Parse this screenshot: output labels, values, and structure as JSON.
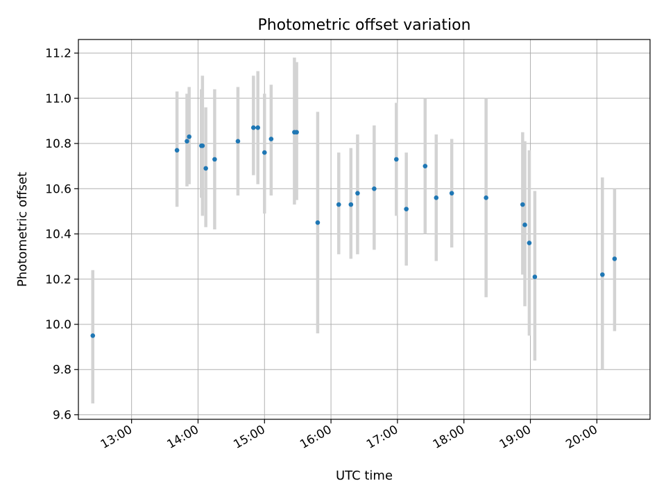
{
  "chart_data": {
    "type": "scatter",
    "title": "Photometric offset variation",
    "xlabel": "UTC time",
    "ylabel": "Photometric offset",
    "xlim": [
      "12:12",
      "20:48"
    ],
    "ylim": [
      9.58,
      11.26
    ],
    "grid": true,
    "x_ticks": [
      "13:00",
      "14:00",
      "15:00",
      "16:00",
      "17:00",
      "18:00",
      "19:00",
      "20:00"
    ],
    "y_ticks": [
      "9.6",
      "9.8",
      "10.0",
      "10.2",
      "10.4",
      "10.6",
      "10.8",
      "11.0",
      "11.2"
    ],
    "colors": {
      "point": "#1f77b4",
      "errorbar": "#d3d3d3",
      "grid": "#b0b0b0"
    },
    "series": [
      {
        "points": [
          {
            "x": "12:25",
            "y": 9.95,
            "yerr": [
              9.65,
              10.24
            ]
          },
          {
            "x": "13:41",
            "y": 10.77,
            "yerr": [
              10.52,
              11.03
            ]
          },
          {
            "x": "13:50",
            "y": 10.81,
            "yerr": [
              10.61,
              11.02
            ]
          },
          {
            "x": "13:52",
            "y": 10.83,
            "yerr": [
              10.62,
              11.05
            ]
          },
          {
            "x": "14:03",
            "y": 10.79,
            "yerr": [
              10.56,
              11.04
            ]
          },
          {
            "x": "14:04",
            "y": 10.79,
            "yerr": [
              10.48,
              11.1
            ]
          },
          {
            "x": "14:07",
            "y": 10.69,
            "yerr": [
              10.43,
              10.96
            ]
          },
          {
            "x": "14:15",
            "y": 10.73,
            "yerr": [
              10.42,
              11.04
            ]
          },
          {
            "x": "14:36",
            "y": 10.81,
            "yerr": [
              10.57,
              11.05
            ]
          },
          {
            "x": "14:50",
            "y": 10.87,
            "yerr": [
              10.66,
              11.1
            ]
          },
          {
            "x": "14:54",
            "y": 10.87,
            "yerr": [
              10.62,
              11.12
            ]
          },
          {
            "x": "15:00",
            "y": 10.76,
            "yerr": [
              10.49,
              11.02
            ]
          },
          {
            "x": "15:06",
            "y": 10.82,
            "yerr": [
              10.57,
              11.06
            ]
          },
          {
            "x": "15:27",
            "y": 10.85,
            "yerr": [
              10.53,
              11.18
            ]
          },
          {
            "x": "15:29",
            "y": 10.85,
            "yerr": [
              10.55,
              11.16
            ]
          },
          {
            "x": "15:48",
            "y": 10.45,
            "yerr": [
              9.96,
              10.94
            ]
          },
          {
            "x": "16:07",
            "y": 10.53,
            "yerr": [
              10.31,
              10.76
            ]
          },
          {
            "x": "16:18",
            "y": 10.53,
            "yerr": [
              10.29,
              10.78
            ]
          },
          {
            "x": "16:24",
            "y": 10.58,
            "yerr": [
              10.31,
              10.84
            ]
          },
          {
            "x": "16:39",
            "y": 10.6,
            "yerr": [
              10.33,
              10.88
            ]
          },
          {
            "x": "16:59",
            "y": 10.73,
            "yerr": [
              10.48,
              10.98
            ]
          },
          {
            "x": "17:08",
            "y": 10.51,
            "yerr": [
              10.26,
              10.76
            ]
          },
          {
            "x": "17:25",
            "y": 10.7,
            "yerr": [
              10.4,
              11.0
            ]
          },
          {
            "x": "17:35",
            "y": 10.56,
            "yerr": [
              10.28,
              10.84
            ]
          },
          {
            "x": "17:49",
            "y": 10.58,
            "yerr": [
              10.34,
              10.82
            ]
          },
          {
            "x": "18:20",
            "y": 10.56,
            "yerr": [
              10.12,
              11.0
            ]
          },
          {
            "x": "18:53",
            "y": 10.53,
            "yerr": [
              10.22,
              10.85
            ]
          },
          {
            "x": "18:55",
            "y": 10.44,
            "yerr": [
              10.08,
              10.81
            ]
          },
          {
            "x": "18:59",
            "y": 10.36,
            "yerr": [
              9.95,
              10.77
            ]
          },
          {
            "x": "19:04",
            "y": 10.21,
            "yerr": [
              9.84,
              10.59
            ]
          },
          {
            "x": "20:05",
            "y": 10.22,
            "yerr": [
              9.8,
              10.65
            ]
          },
          {
            "x": "20:16",
            "y": 10.29,
            "yerr": [
              9.97,
              10.6
            ]
          }
        ]
      }
    ]
  }
}
